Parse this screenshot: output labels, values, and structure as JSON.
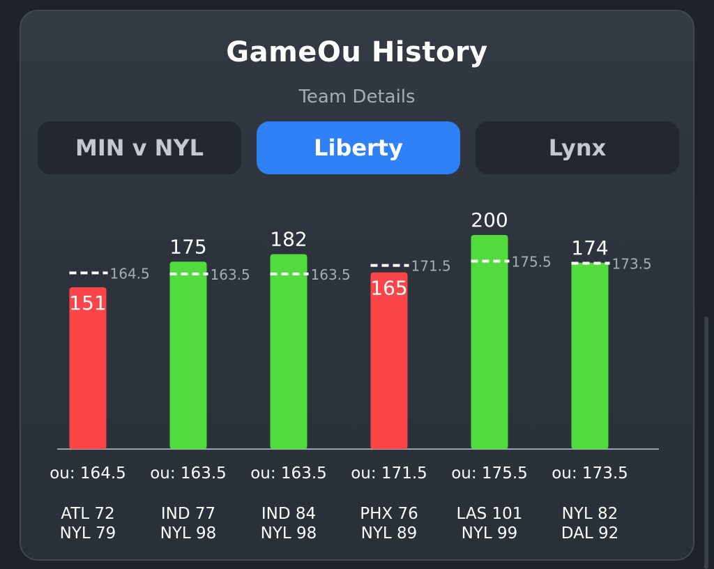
{
  "header": {
    "title": "GameOu History",
    "subtitle": "Team Details"
  },
  "tabs": [
    {
      "label": "MIN v NYL",
      "active": false
    },
    {
      "label": "Liberty",
      "active": true
    },
    {
      "label": "Lynx",
      "active": false
    }
  ],
  "colors": {
    "over": "#51db3c",
    "under": "#fb4549",
    "active_tab": "#2f7ff5",
    "ou_line": "#ffffff"
  },
  "chart_data": {
    "type": "bar",
    "categories": [
      "ATL 72\nNYL 79",
      "IND 77\nNYL 98",
      "IND 84\nNYL 98",
      "PHX 76\nNYL 89",
      "LAS 101\nNYL 99",
      "NYL 82\nDAL 92"
    ],
    "games": [
      {
        "line1": "ATL 72",
        "line2": "NYL 79",
        "total": 151,
        "ou": 164.5,
        "ou_tick": "164.5",
        "ou_label": "ou: 164.5",
        "result": "under"
      },
      {
        "line1": "IND 77",
        "line2": "NYL 98",
        "total": 175,
        "ou": 163.5,
        "ou_tick": "163.5",
        "ou_label": "ou: 163.5",
        "result": "over"
      },
      {
        "line1": "IND 84",
        "line2": "NYL 98",
        "total": 182,
        "ou": 163.5,
        "ou_tick": "163.5",
        "ou_label": "ou: 163.5",
        "result": "over"
      },
      {
        "line1": "PHX 76",
        "line2": "NYL 89",
        "total": 165,
        "ou": 171.5,
        "ou_tick": "171.5",
        "ou_label": "ou: 171.5",
        "result": "under"
      },
      {
        "line1": "LAS 101",
        "line2": "NYL 99",
        "total": 200,
        "ou": 175.5,
        "ou_tick": "175.5",
        "ou_label": "ou: 175.5",
        "result": "over"
      },
      {
        "line1": "NYL 82",
        "line2": "DAL 92",
        "total": 174,
        "ou": 173.5,
        "ou_tick": "173.5",
        "ou_label": "ou: 173.5",
        "result": "over"
      }
    ]
  }
}
